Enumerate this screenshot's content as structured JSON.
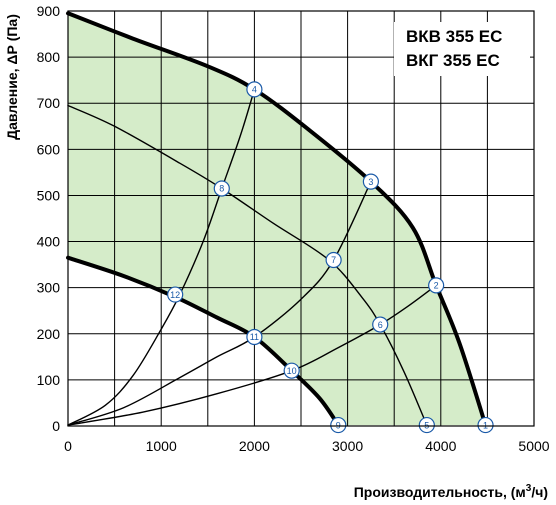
{
  "chart_data": {
    "type": "line",
    "title_lines": [
      "ВКВ 355 ЕС",
      "ВКГ 355 ЕС"
    ],
    "xlabel": "Производительность, (м³/ч)",
    "xlabel_parts": [
      "Производительность, (м",
      "3",
      "/ч)"
    ],
    "ylabel": "Давление, ΔР (Па)",
    "xlim": [
      0,
      5000
    ],
    "ylim": [
      0,
      900
    ],
    "xticks": [
      0,
      500,
      1000,
      1500,
      2000,
      2500,
      3000,
      3500,
      4000,
      4500,
      5000
    ],
    "yticks": [
      0,
      100,
      200,
      300,
      400,
      500,
      600,
      700,
      800,
      900
    ],
    "xtick_labels": [
      "0",
      "1000",
      "2000",
      "3000",
      "4000",
      "5000"
    ],
    "xtick_label_values": [
      0,
      1000,
      2000,
      3000,
      4000,
      5000
    ],
    "ytick_labels": [
      "0",
      "100",
      "200",
      "300",
      "400",
      "500",
      "600",
      "700",
      "800",
      "900"
    ],
    "grid": true,
    "colors": {
      "fill": "#d5ecc9",
      "curve": "#000000",
      "marker_stroke": "#1a5aa8",
      "marker_fill": "#ffffff"
    },
    "series": [
      {
        "role": "max",
        "points": [
          [
            0,
            895
          ],
          [
            700,
            840
          ],
          [
            1500,
            780
          ],
          [
            2000,
            730
          ],
          [
            2600,
            640
          ],
          [
            3250,
            530
          ],
          [
            3700,
            430
          ],
          [
            3950,
            305
          ],
          [
            4200,
            180
          ],
          [
            4480,
            2
          ]
        ]
      },
      {
        "role": "mid",
        "points": [
          [
            0,
            695
          ],
          [
            500,
            650
          ],
          [
            1200,
            570
          ],
          [
            1650,
            515
          ],
          [
            2200,
            440
          ],
          [
            2800,
            360
          ],
          [
            3150,
            280
          ],
          [
            3350,
            220
          ],
          [
            3600,
            120
          ],
          [
            3850,
            2
          ]
        ]
      },
      {
        "role": "min",
        "points": [
          [
            0,
            365
          ],
          [
            600,
            325
          ],
          [
            1150,
            280
          ],
          [
            1600,
            235
          ],
          [
            2000,
            193
          ],
          [
            2400,
            120
          ],
          [
            2700,
            60
          ],
          [
            2900,
            2
          ]
        ]
      },
      {
        "role": "system",
        "points": [
          [
            0,
            2
          ],
          [
            400,
            45
          ],
          [
            700,
            110
          ],
          [
            1000,
            210
          ],
          [
            1200,
            285
          ],
          [
            1450,
            400
          ],
          [
            1650,
            515
          ],
          [
            1850,
            630
          ],
          [
            2000,
            730
          ]
        ]
      },
      {
        "role": "system",
        "points": [
          [
            0,
            2
          ],
          [
            600,
            40
          ],
          [
            1200,
            105
          ],
          [
            1600,
            150
          ],
          [
            2000,
            193
          ],
          [
            2500,
            275
          ],
          [
            2850,
            360
          ],
          [
            3250,
            530
          ]
        ]
      },
      {
        "role": "system",
        "points": [
          [
            0,
            2
          ],
          [
            800,
            30
          ],
          [
            1600,
            70
          ],
          [
            2400,
            120
          ],
          [
            2900,
            170
          ],
          [
            3350,
            220
          ],
          [
            3650,
            260
          ],
          [
            3950,
            305
          ]
        ]
      }
    ],
    "markers": [
      {
        "label": "1",
        "x": 4480,
        "y": 2
      },
      {
        "label": "2",
        "x": 3950,
        "y": 305
      },
      {
        "label": "3",
        "x": 3250,
        "y": 530
      },
      {
        "label": "4",
        "x": 2000,
        "y": 730
      },
      {
        "label": "5",
        "x": 3850,
        "y": 2
      },
      {
        "label": "6",
        "x": 3350,
        "y": 220
      },
      {
        "label": "7",
        "x": 2850,
        "y": 360
      },
      {
        "label": "8",
        "x": 1650,
        "y": 515
      },
      {
        "label": "9",
        "x": 2900,
        "y": 2
      },
      {
        "label": "10",
        "x": 2400,
        "y": 120
      },
      {
        "label": "11",
        "x": 2000,
        "y": 193
      },
      {
        "label": "12",
        "x": 1150,
        "y": 285
      }
    ]
  }
}
